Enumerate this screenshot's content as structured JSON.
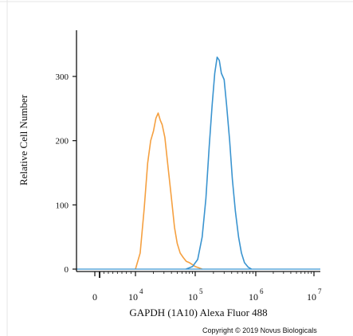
{
  "chart_data": {
    "type": "line",
    "title": "",
    "xlabel": "GAPDH (1A10) Alexa Fluor 488",
    "ylabel": "Relative Cell Number",
    "x_scale": "log",
    "xlim": [
      0,
      10000000
    ],
    "ylim": [
      0,
      350
    ],
    "grid": false,
    "legend": "none",
    "y_ticks": [
      {
        "value": 0,
        "label": "0"
      },
      {
        "value": 100,
        "label": "100"
      },
      {
        "value": 200,
        "label": "200"
      },
      {
        "value": 300,
        "label": "300"
      }
    ],
    "x_ticks": [
      {
        "value": 0,
        "base": "0",
        "exp": ""
      },
      {
        "value": 10000,
        "base": "10",
        "exp": "4"
      },
      {
        "value": 100000,
        "base": "10",
        "exp": "5"
      },
      {
        "value": 1000000,
        "base": "10",
        "exp": "6"
      },
      {
        "value": 10000000,
        "base": "10",
        "exp": "7"
      }
    ],
    "series": [
      {
        "color": "#f5a040",
        "points": [
          [
            10000,
            0
          ],
          [
            12000,
            25
          ],
          [
            14000,
            95
          ],
          [
            16000,
            165
          ],
          [
            18000,
            200
          ],
          [
            20000,
            215
          ],
          [
            22000,
            235
          ],
          [
            24000,
            243
          ],
          [
            26000,
            232
          ],
          [
            28000,
            225
          ],
          [
            31000,
            205
          ],
          [
            35000,
            160
          ],
          [
            40000,
            110
          ],
          [
            45000,
            65
          ],
          [
            50000,
            40
          ],
          [
            56000,
            25
          ],
          [
            63000,
            18
          ],
          [
            71000,
            12
          ],
          [
            80000,
            10
          ],
          [
            90000,
            7
          ],
          [
            100000,
            4
          ],
          [
            115000,
            2
          ],
          [
            130000,
            0
          ]
        ]
      },
      {
        "color": "#3a94d0",
        "points": [
          [
            70000,
            0
          ],
          [
            90000,
            4
          ],
          [
            110000,
            15
          ],
          [
            130000,
            50
          ],
          [
            150000,
            110
          ],
          [
            170000,
            190
          ],
          [
            190000,
            255
          ],
          [
            210000,
            305
          ],
          [
            230000,
            330
          ],
          [
            250000,
            325
          ],
          [
            270000,
            305
          ],
          [
            300000,
            295
          ],
          [
            330000,
            255
          ],
          [
            370000,
            200
          ],
          [
            410000,
            140
          ],
          [
            460000,
            90
          ],
          [
            520000,
            50
          ],
          [
            580000,
            25
          ],
          [
            650000,
            10
          ],
          [
            750000,
            3
          ],
          [
            850000,
            0
          ]
        ]
      }
    ]
  },
  "footer": {
    "copyright": "Copyright © 2019 Novus Biologicals"
  }
}
